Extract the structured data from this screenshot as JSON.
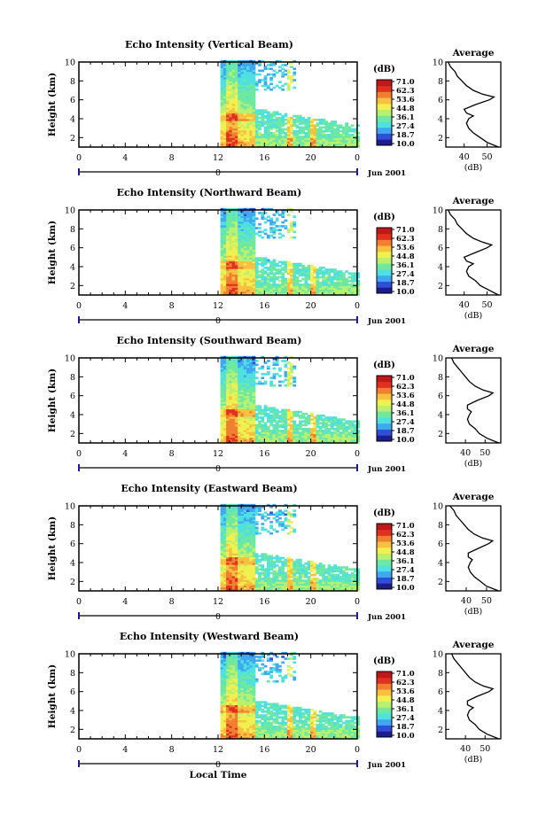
{
  "global": {
    "xlabel": "Local Time",
    "secondary_labels": [
      "0",
      "Jun 2001"
    ]
  },
  "chart_data": [
    {
      "type": "heatmap",
      "title": "Echo Intensity (Vertical Beam)",
      "ylabel": "Height (km)",
      "xlim": [
        0,
        24
      ],
      "x_ticks": [
        "0",
        "4",
        "8",
        "12",
        "16",
        "20",
        "0"
      ],
      "ylim": [
        1,
        10
      ],
      "y_ticks": [
        "2",
        "4",
        "6",
        "8",
        "10"
      ],
      "colorbar": {
        "unit": "(dB)",
        "levels": [
          "71.0",
          "62.3",
          "53.6",
          "44.8",
          "36.1",
          "27.4",
          "18.7",
          "10.0"
        ]
      },
      "profile": {
        "title": "Average",
        "xlabel": "(dB)",
        "x_ticks": [
          "40",
          "50"
        ],
        "xlim": [
          32,
          56
        ],
        "height_km": [
          1.0,
          1.5,
          2.0,
          2.5,
          3.0,
          3.5,
          4.0,
          4.3,
          4.6,
          5.0,
          5.5,
          6.0,
          6.3,
          6.6,
          7.0,
          7.5,
          8.0,
          8.5,
          9.0,
          9.5,
          10.0
        ],
        "db": [
          55,
          50,
          47,
          44,
          42,
          41,
          42,
          44,
          41,
          40,
          45,
          51,
          53,
          48,
          44,
          41,
          39,
          37,
          36,
          34,
          33
        ]
      }
    },
    {
      "type": "heatmap",
      "title": "Echo Intensity (Northward Beam)",
      "ylabel": "Height (km)",
      "xlim": [
        0,
        24
      ],
      "x_ticks": [
        "0",
        "4",
        "8",
        "12",
        "16",
        "20",
        "0"
      ],
      "ylim": [
        1,
        10
      ],
      "y_ticks": [
        "2",
        "4",
        "6",
        "8",
        "10"
      ],
      "colorbar": {
        "unit": "(dB)",
        "levels": [
          "71.0",
          "62.3",
          "53.6",
          "44.8",
          "36.1",
          "27.4",
          "18.7",
          "10.0"
        ]
      },
      "profile": {
        "title": "Average",
        "xlabel": "(dB)",
        "x_ticks": [
          "40",
          "50"
        ],
        "xlim": [
          32,
          56
        ],
        "height_km": [
          1.0,
          1.5,
          2.0,
          2.5,
          3.0,
          3.5,
          4.0,
          4.3,
          4.6,
          5.0,
          5.5,
          6.0,
          6.3,
          6.6,
          7.0,
          7.5,
          8.0,
          8.5,
          9.0,
          9.5,
          10.0
        ],
        "db": [
          55,
          51,
          47,
          45,
          42,
          41,
          42,
          44,
          41,
          40,
          45,
          50,
          52,
          48,
          44,
          41,
          39,
          37,
          36,
          34,
          33
        ]
      }
    },
    {
      "type": "heatmap",
      "title": "Echo Intensity (Southward Beam)",
      "ylabel": "Height (km)",
      "xlim": [
        0,
        24
      ],
      "x_ticks": [
        "0",
        "4",
        "8",
        "12",
        "16",
        "20",
        "0"
      ],
      "ylim": [
        1,
        10
      ],
      "y_ticks": [
        "2",
        "4",
        "6",
        "8",
        "10"
      ],
      "colorbar": {
        "unit": "(dB)",
        "levels": [
          "71.0",
          "62.3",
          "53.6",
          "44.8",
          "36.1",
          "27.4",
          "18.7",
          "10.0"
        ]
      },
      "profile": {
        "title": "Average",
        "xlabel": "(dB)",
        "x_ticks": [
          "40",
          "50"
        ],
        "xlim": [
          30,
          58
        ],
        "height_km": [
          1.0,
          1.5,
          2.0,
          2.5,
          3.0,
          3.5,
          4.0,
          4.3,
          4.6,
          5.0,
          5.5,
          6.0,
          6.3,
          6.6,
          7.0,
          7.5,
          8.0,
          8.5,
          9.0,
          9.5,
          10.0
        ],
        "db": [
          57,
          51,
          47,
          45,
          42,
          41,
          42,
          43,
          41,
          41,
          46,
          52,
          54,
          49,
          45,
          42,
          40,
          38,
          36,
          34,
          33
        ]
      }
    },
    {
      "type": "heatmap",
      "title": "Echo Intensity (Eastward Beam)",
      "ylabel": "Height (km)",
      "xlim": [
        0,
        24
      ],
      "x_ticks": [
        "0",
        "4",
        "8",
        "12",
        "16",
        "20",
        "0"
      ],
      "ylim": [
        1,
        10
      ],
      "y_ticks": [
        "2",
        "4",
        "6",
        "8",
        "10"
      ],
      "colorbar": {
        "unit": "(dB)",
        "levels": [
          "71.0",
          "62.3",
          "53.6",
          "44.8",
          "36.1",
          "27.4",
          "18.7",
          "10.0"
        ]
      },
      "profile": {
        "title": "Average",
        "xlabel": "(dB)",
        "x_ticks": [
          "40",
          "50"
        ],
        "xlim": [
          30,
          57
        ],
        "height_km": [
          1.0,
          1.5,
          2.0,
          2.5,
          3.0,
          3.5,
          4.0,
          4.3,
          4.6,
          5.0,
          5.5,
          6.0,
          6.3,
          6.6,
          7.0,
          7.5,
          8.0,
          8.5,
          9.0,
          9.5,
          10.0
        ],
        "db": [
          56,
          50,
          47,
          44,
          42,
          41,
          42,
          43,
          41,
          41,
          46,
          51,
          53,
          48,
          44,
          41,
          39,
          37,
          35,
          34,
          32
        ]
      }
    },
    {
      "type": "heatmap",
      "title": "Echo Intensity (Westward Beam)",
      "ylabel": "Height (km)",
      "xlim": [
        0,
        24
      ],
      "x_ticks": [
        "0",
        "4",
        "8",
        "12",
        "16",
        "20",
        "0"
      ],
      "ylim": [
        1,
        10
      ],
      "y_ticks": [
        "2",
        "4",
        "6",
        "8",
        "10"
      ],
      "colorbar": {
        "unit": "(dB)",
        "levels": [
          "71.0",
          "62.3",
          "53.6",
          "44.8",
          "36.1",
          "27.4",
          "18.7",
          "10.0"
        ]
      },
      "profile": {
        "title": "Average",
        "xlabel": "(dB)",
        "x_ticks": [
          "40",
          "50"
        ],
        "xlim": [
          30,
          58
        ],
        "height_km": [
          1.0,
          1.5,
          2.0,
          2.5,
          3.0,
          3.5,
          4.0,
          4.3,
          4.6,
          5.0,
          5.5,
          6.0,
          6.3,
          6.6,
          7.0,
          7.5,
          8.0,
          8.5,
          9.0,
          9.5,
          10.0
        ],
        "db": [
          57,
          51,
          47,
          45,
          42,
          41,
          42,
          44,
          41,
          41,
          46,
          52,
          54,
          49,
          45,
          42,
          40,
          38,
          36,
          34,
          33
        ]
      }
    }
  ],
  "colors": {
    "colormap": [
      "#1c1c8c",
      "#2f4fd8",
      "#3fa8f0",
      "#4fe0e0",
      "#6fe8a0",
      "#b8f070",
      "#f0f050",
      "#f8c040",
      "#f08030",
      "#e03020",
      "#c01818"
    ]
  }
}
